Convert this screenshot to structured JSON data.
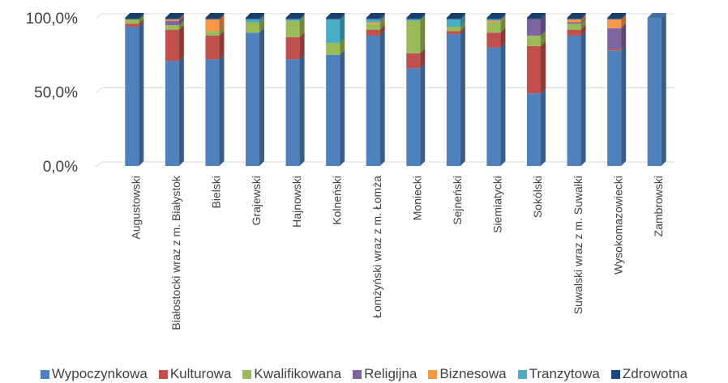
{
  "chart_data": {
    "type": "bar",
    "stacked": true,
    "percent": true,
    "ylim": [
      0,
      100
    ],
    "yticks": [
      0,
      50,
      100
    ],
    "ytick_labels": [
      "0,0%",
      "50,0%",
      "100,0%"
    ],
    "grid": true,
    "legend_position": "bottom",
    "categories": [
      "Augustowski",
      "Białostocki wraz z m. Białystok",
      "Bielski",
      "Grajewski",
      "Hajnowski",
      "Kolneński",
      "Łomżyński wraz z m. Łomża",
      "Moniecki",
      "Sejneński",
      "Siemiatycki",
      "Sokólski",
      "Suwalski wraz z m. Suwałki",
      "Wysokomazowiecki",
      "Zambrowski"
    ],
    "series": [
      {
        "name": "Wypoczynkowa",
        "color": "#4F81BD",
        "values": [
          94,
          71,
          72,
          90,
          72,
          75,
          88,
          66,
          89,
          80,
          49,
          88,
          78,
          100
        ]
      },
      {
        "name": "Kulturowa",
        "color": "#C0504D",
        "values": [
          2,
          21,
          16,
          0,
          15,
          0,
          4,
          10,
          2,
          10,
          32,
          4,
          1,
          0
        ]
      },
      {
        "name": "Kwalifikowana",
        "color": "#9BBB59",
        "values": [
          3,
          3,
          3,
          7,
          11,
          8,
          4,
          22,
          3,
          7,
          7,
          4,
          0,
          0
        ]
      },
      {
        "name": "Religijna",
        "color": "#8064A2",
        "values": [
          0,
          3,
          0,
          0,
          0,
          0,
          0,
          0,
          0,
          0,
          11,
          1,
          14,
          0
        ]
      },
      {
        "name": "Biznesowa",
        "color": "#F79646",
        "values": [
          0,
          1,
          8,
          0,
          0,
          0,
          1,
          0,
          0,
          1,
          0,
          2,
          6,
          0
        ]
      },
      {
        "name": "Tranzytowa",
        "color": "#4BACC6",
        "values": [
          0,
          0,
          0,
          2,
          1,
          16,
          2,
          1,
          5,
          1,
          0,
          0,
          0,
          0
        ]
      },
      {
        "name": "Zdrowotna",
        "color": "#1F497D",
        "values": [
          1,
          1,
          1,
          1,
          1,
          1,
          1,
          1,
          1,
          1,
          1,
          1,
          1,
          0
        ]
      }
    ]
  }
}
